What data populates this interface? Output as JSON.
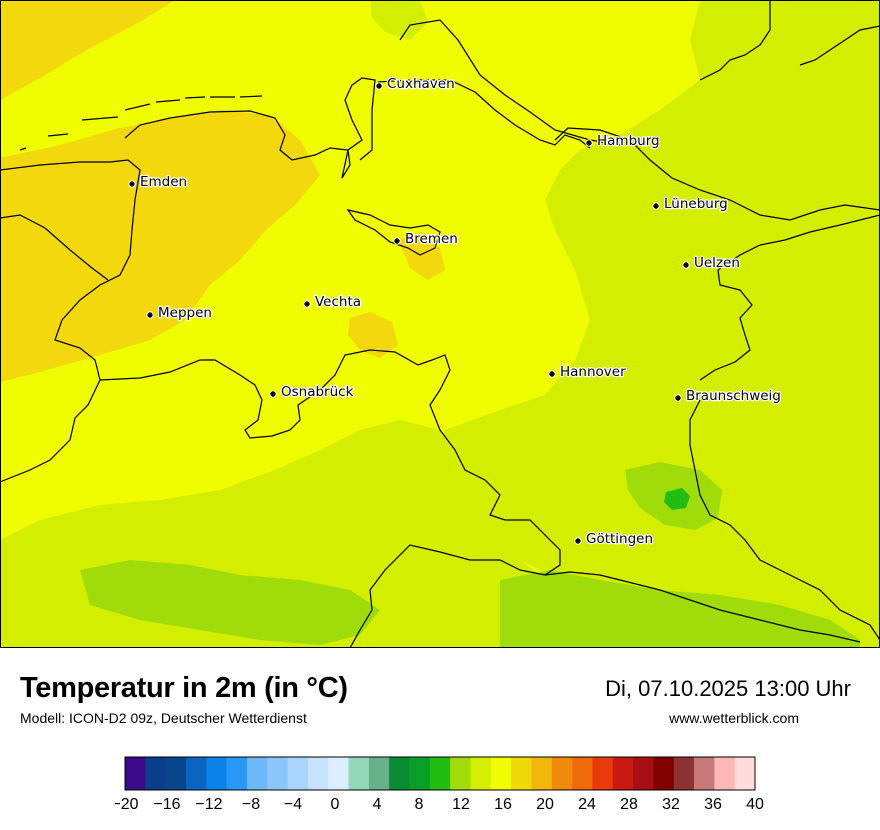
{
  "title": "Temperatur in 2m (in °C)",
  "model": "Modell: ICON-D2 09z, Deutscher Wetterdienst",
  "datetime": "Di, 07.10.2025 13:00 Uhr",
  "website": "www.wetterblick.com",
  "cities": [
    {
      "name": "Cuxhaven"
    },
    {
      "name": "Hamburg"
    },
    {
      "name": "Emden"
    },
    {
      "name": "Lüneburg"
    },
    {
      "name": "Bremen"
    },
    {
      "name": "Uelzen"
    },
    {
      "name": "Vechta"
    },
    {
      "name": "Meppen"
    },
    {
      "name": "Hannover"
    },
    {
      "name": "Osnabrück"
    },
    {
      "name": "Braunschweig"
    },
    {
      "name": "Göttingen"
    }
  ],
  "colorscale": {
    "min": -20,
    "max": 40,
    "step": 2,
    "tick_labels": [
      "−20",
      "−16",
      "−12",
      "−8",
      "−4",
      "0",
      "4",
      "8",
      "12",
      "16",
      "20",
      "24",
      "28",
      "32",
      "36",
      "40"
    ],
    "colors": [
      "#3a0a8a",
      "#0a3d8c",
      "#08458a",
      "#0a64c0",
      "#0a82e8",
      "#2897f5",
      "#6cb8f8",
      "#8ac6fa",
      "#a8d4fb",
      "#c6e2fc",
      "#dceefe",
      "#92d8b8",
      "#68b08a",
      "#0a8a32",
      "#0a9e28",
      "#22bc12",
      "#a0dc0a",
      "#d4ee00",
      "#f0fc00",
      "#f0d80a",
      "#f0b80a",
      "#f08a0a",
      "#f06a0a",
      "#e83a0a",
      "#c81a12",
      "#a80e12",
      "#800000",
      "#8c3232",
      "#c87878",
      "#ffb8b8",
      "#ffdcdc"
    ]
  },
  "field_colors": {
    "warm_west": "#f2d80c",
    "base": "#f0fc00",
    "cool": "#d4ee00",
    "coolest": "#a0dc0a",
    "green_spot": "#22bc12"
  }
}
